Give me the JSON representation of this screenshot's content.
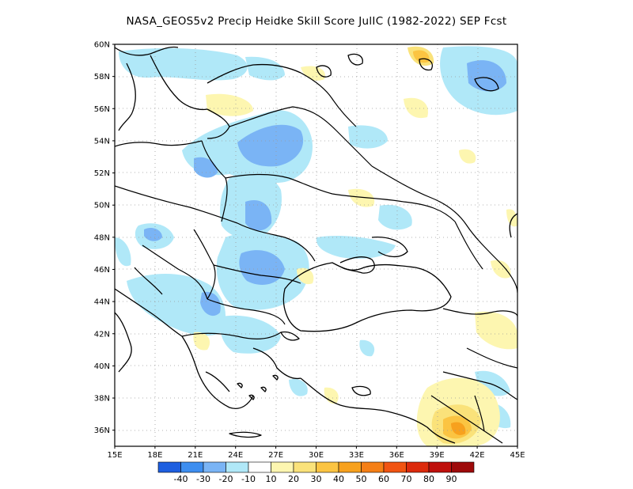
{
  "title": "NASA_GEOS5v2 Precip Heidke Skill Score JulIC (1982-2022) SEP Fcst",
  "map": {
    "lat_labels": [
      "60N",
      "58N",
      "56N",
      "54N",
      "52N",
      "50N",
      "48N",
      "46N",
      "44N",
      "42N",
      "40N",
      "38N",
      "36N"
    ],
    "lat_values": [
      60,
      58,
      56,
      54,
      52,
      50,
      48,
      46,
      44,
      42,
      40,
      38,
      36
    ],
    "lat_range": [
      35,
      60
    ],
    "lon_labels": [
      "15E",
      "18E",
      "21E",
      "24E",
      "27E",
      "30E",
      "33E",
      "36E",
      "39E",
      "42E",
      "45E"
    ],
    "lon_values": [
      15,
      18,
      21,
      24,
      27,
      30,
      33,
      36,
      39,
      42,
      45
    ],
    "lon_range": [
      15,
      45
    ],
    "grid": "dotted"
  },
  "colorbar": {
    "colors": [
      "#1e5fe0",
      "#3d8ef0",
      "#7ab4f5",
      "#b0e8f8",
      "#ffffff",
      "#fdf6b0",
      "#fae27a",
      "#fbc442",
      "#f7a11e",
      "#f57f16",
      "#f15412",
      "#dc2a0c",
      "#bf100c",
      "#9e0a0a"
    ],
    "labels": [
      "-40",
      "-30",
      "-20",
      "-10",
      "10",
      "20",
      "30",
      "40",
      "50",
      "60",
      "70",
      "80",
      "90"
    ]
  }
}
